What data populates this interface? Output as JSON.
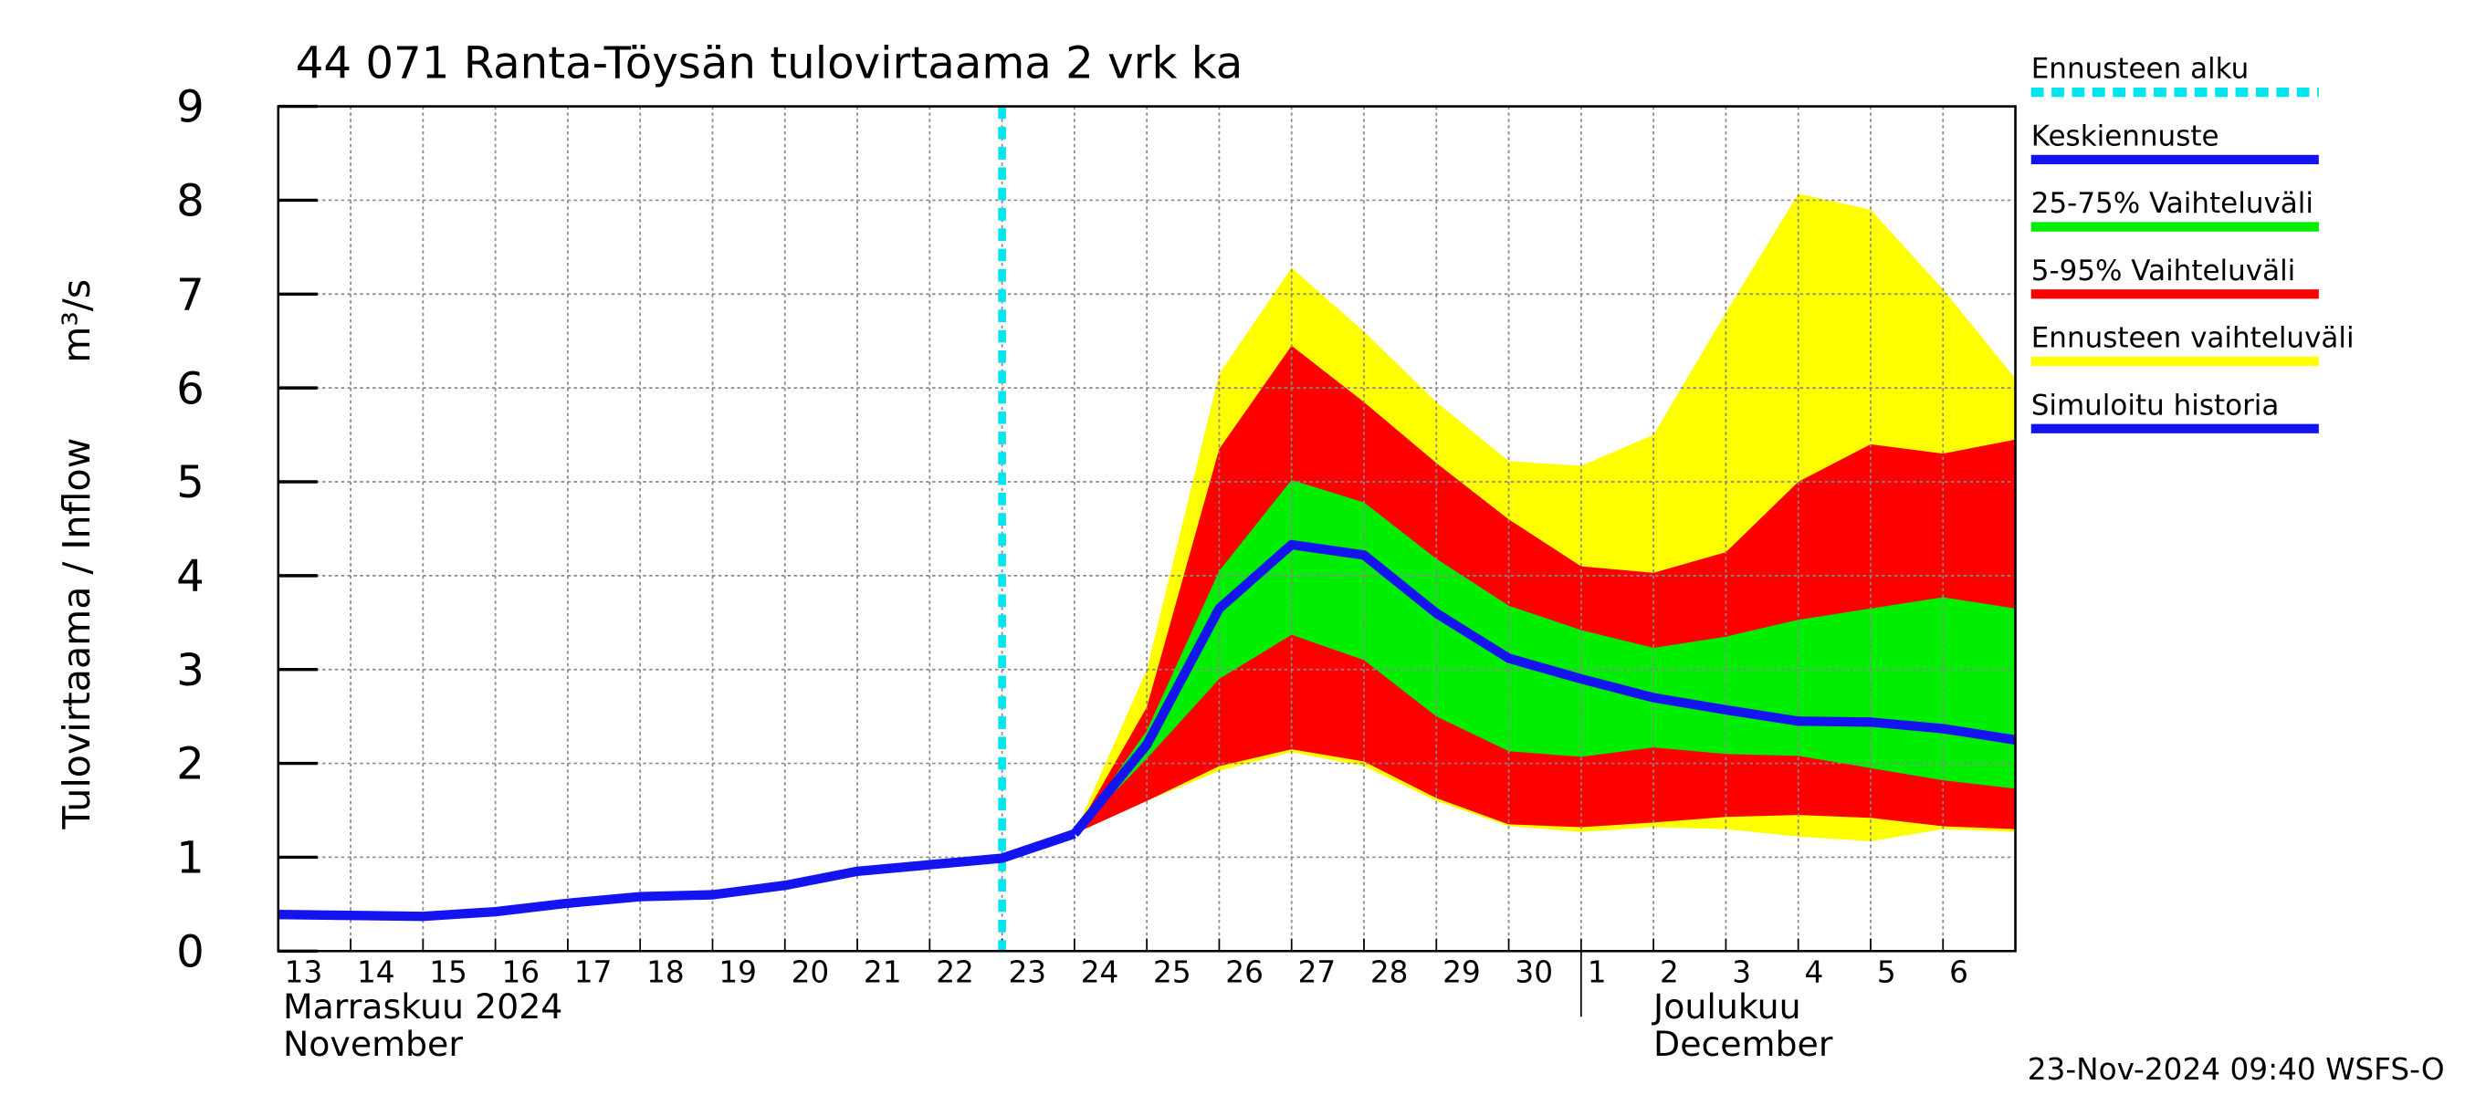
{
  "chart_data": {
    "type": "band-forecast",
    "title": "44 071 Ranta-Töysän tulovirtaama 2 vrk ka",
    "y_label": "Tulovirtaama / Inflow",
    "y_unit": "m³/s",
    "footer": "23-Nov-2024 09:40 WSFS-O",
    "categories": [
      "13",
      "14",
      "15",
      "16",
      "17",
      "18",
      "19",
      "20",
      "21",
      "22",
      "23",
      "24",
      "25",
      "26",
      "27",
      "28",
      "29",
      "30",
      "1",
      "2",
      "3",
      "4",
      "5",
      "6",
      null
    ],
    "month_labels": [
      {
        "lines": [
          "Marraskuu 2024",
          "November"
        ],
        "x": 0
      },
      {
        "lines": [
          "Joulukuu",
          "December"
        ],
        "x": 18
      }
    ],
    "ylim": [
      0,
      9
    ],
    "yticks": [
      0,
      1,
      2,
      3,
      4,
      5,
      6,
      7,
      8,
      9
    ],
    "grid": true,
    "forecast_start": {
      "name": "Ennusteen alku",
      "color": "#00e5ee",
      "x": 10
    },
    "series": [
      {
        "name": "Keskiennuste",
        "color": "#1414f0",
        "values": [
          null,
          null,
          null,
          null,
          null,
          null,
          null,
          null,
          null,
          null,
          null,
          1.25,
          2.2,
          3.65,
          4.33,
          4.22,
          3.6,
          3.12,
          2.9,
          2.7,
          2.57,
          2.45,
          2.44,
          2.37,
          2.25
        ]
      },
      {
        "name": "25-75% Vaihteluväli",
        "color": "#00ee00",
        "upper": [
          null,
          null,
          null,
          null,
          null,
          null,
          null,
          null,
          null,
          null,
          null,
          1.25,
          2.35,
          4.05,
          5.02,
          4.78,
          4.18,
          3.68,
          3.42,
          3.23,
          3.35,
          3.53,
          3.65,
          3.77,
          3.65
        ],
        "lower": [
          null,
          null,
          null,
          null,
          null,
          null,
          null,
          null,
          null,
          null,
          null,
          1.25,
          2.05,
          2.9,
          3.37,
          3.1,
          2.5,
          2.13,
          2.07,
          2.17,
          2.1,
          2.08,
          1.95,
          1.82,
          1.73
        ]
      },
      {
        "name": "5-95% Vaihteluväli",
        "color": "#ff0000",
        "upper": [
          null,
          null,
          null,
          null,
          null,
          null,
          null,
          null,
          null,
          null,
          null,
          1.25,
          2.6,
          5.35,
          6.45,
          5.85,
          5.2,
          4.6,
          4.1,
          4.03,
          4.25,
          5.0,
          5.4,
          5.3,
          5.45
        ],
        "lower": [
          null,
          null,
          null,
          null,
          null,
          null,
          null,
          null,
          null,
          null,
          null,
          1.25,
          1.6,
          1.97,
          2.15,
          2.02,
          1.63,
          1.35,
          1.32,
          1.37,
          1.43,
          1.45,
          1.42,
          1.33,
          1.3
        ]
      },
      {
        "name": "Ennusteen vaihteluväli",
        "color": "#ffff00",
        "upper": [
          null,
          null,
          null,
          null,
          null,
          null,
          null,
          null,
          null,
          null,
          null,
          1.25,
          3.0,
          6.15,
          7.28,
          6.6,
          5.85,
          5.22,
          5.17,
          5.5,
          6.8,
          8.07,
          7.9,
          7.05,
          6.1
        ],
        "lower": [
          null,
          null,
          null,
          null,
          null,
          null,
          null,
          null,
          null,
          null,
          null,
          1.25,
          1.6,
          1.92,
          2.12,
          1.97,
          1.6,
          1.33,
          1.27,
          1.32,
          1.3,
          1.22,
          1.17,
          1.3,
          1.27
        ]
      },
      {
        "name": "Simuloitu historia",
        "color": "#1414f0",
        "values": [
          0.39,
          0.38,
          0.37,
          0.42,
          0.51,
          0.58,
          0.6,
          0.7,
          0.85,
          0.92,
          0.99,
          1.25,
          null,
          null,
          null,
          null,
          null,
          null,
          null,
          null,
          null,
          null,
          null,
          null,
          null
        ]
      }
    ]
  }
}
